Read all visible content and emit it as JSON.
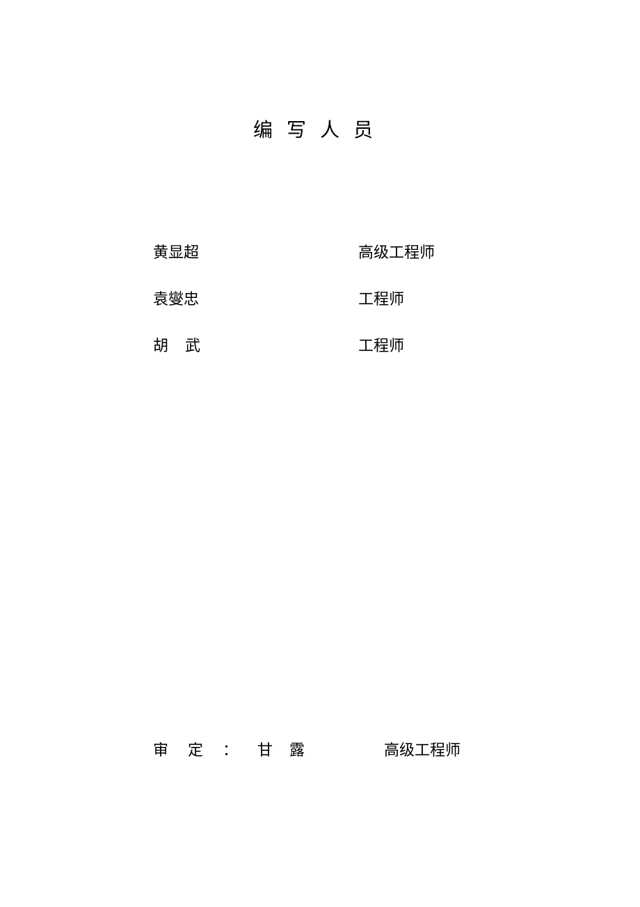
{
  "page": {
    "title": "编写人员",
    "background_color": "#ffffff",
    "text_color": "#000000",
    "title_fontsize": 28,
    "body_fontsize": 22
  },
  "staff": [
    {
      "name": "黄显超",
      "title": "高级工程师",
      "spaced": false
    },
    {
      "name": "袁燮忠",
      "title": "工程师",
      "spaced": false
    },
    {
      "name": "胡武",
      "title": "工程师",
      "spaced": true
    }
  ],
  "reviewer": {
    "label": "审定：",
    "name": "甘露",
    "title": "高级工程师"
  }
}
